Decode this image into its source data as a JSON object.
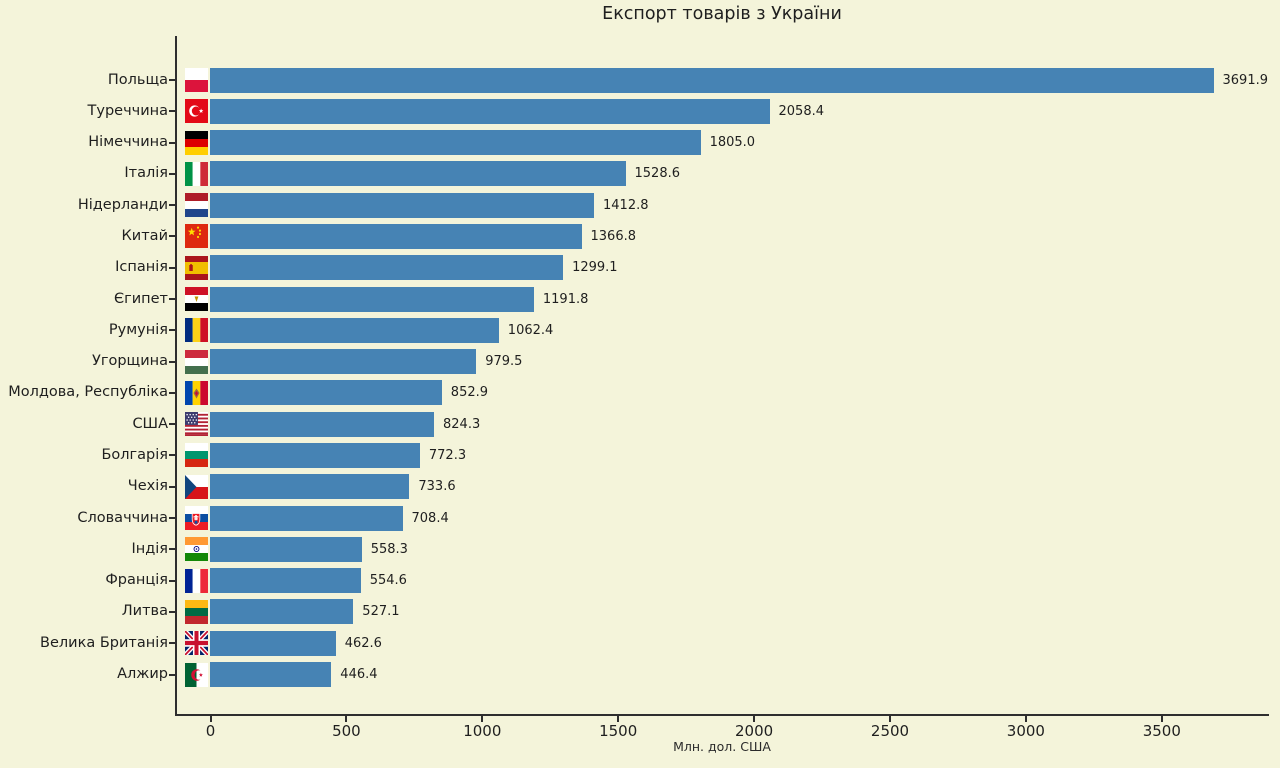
{
  "title": "Експорт товарів з України",
  "chart_data": {
    "type": "bar",
    "orientation": "horizontal",
    "title": "Експорт товарів з України",
    "xlabel": "Млн. дол. США",
    "xlim": [
      0,
      3890
    ],
    "xticks": [
      0,
      500,
      1000,
      1500,
      2000,
      2500,
      3000,
      3500
    ],
    "grid": false,
    "legend": "none",
    "bar_color": "#4683b4",
    "background_color": "#f4f4da",
    "categories": [
      "Польща",
      "Туреччина",
      "Німеччина",
      "Італія",
      "Нідерланди",
      "Китай",
      "Іспанія",
      "Єгипет",
      "Румунія",
      "Угорщина",
      "Молдова, Республіка",
      "США",
      "Болгарія",
      "Чехія",
      "Словаччина",
      "Індія",
      "Франція",
      "Литва",
      "Велика Британія",
      "Алжир"
    ],
    "values": [
      3691.9,
      2058.4,
      1805.0,
      1528.6,
      1412.8,
      1366.8,
      1299.1,
      1191.8,
      1062.4,
      979.5,
      852.9,
      824.3,
      772.3,
      733.6,
      708.4,
      558.3,
      554.6,
      527.1,
      462.6,
      446.4
    ],
    "value_labels": [
      "3691.9",
      "2058.4",
      "1805.0",
      "1528.6",
      "1412.8",
      "1366.8",
      "1299.1",
      "1191.8",
      "1062.4",
      "979.5",
      "852.9",
      "824.3",
      "772.3",
      "733.6",
      "708.4",
      "558.3",
      "554.6",
      "527.1",
      "462.6",
      "446.4"
    ],
    "flag_icons": [
      "flag-pl-icon",
      "flag-tr-icon",
      "flag-de-icon",
      "flag-it-icon",
      "flag-nl-icon",
      "flag-cn-icon",
      "flag-es-icon",
      "flag-eg-icon",
      "flag-ro-icon",
      "flag-hu-icon",
      "flag-md-icon",
      "flag-us-icon",
      "flag-bg-icon",
      "flag-cz-icon",
      "flag-sk-icon",
      "flag-in-icon",
      "flag-fr-icon",
      "flag-lt-icon",
      "flag-gb-icon",
      "flag-dz-icon"
    ],
    "flag_codes": [
      "pl",
      "tr",
      "de",
      "it",
      "nl",
      "cn",
      "es",
      "eg",
      "ro",
      "hu",
      "md",
      "us",
      "bg",
      "cz",
      "sk",
      "in",
      "fr",
      "lt",
      "gb",
      "dz"
    ]
  }
}
